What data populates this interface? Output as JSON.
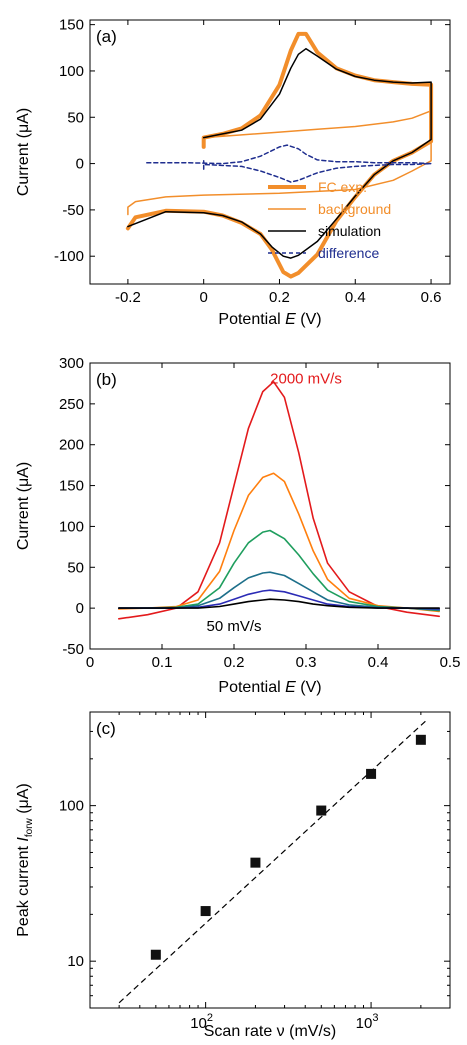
{
  "chart_data": [
    {
      "type": "line",
      "panel": "(a)",
      "xlabel_prefix": "Potential ",
      "xlabel_var": "E",
      "xlabel_unit": " (V)",
      "ylabel": "Current (μA)",
      "xlim": [
        -0.3,
        0.65
      ],
      "ylim": [
        -130,
        155
      ],
      "xticks": [
        -0.2,
        0,
        0.2,
        0.4,
        0.6
      ],
      "xtick_labels": [
        "-0.2",
        "0",
        "0.2",
        "0.4",
        "0.6"
      ],
      "yticks": [
        -100,
        -50,
        0,
        50,
        100,
        150
      ],
      "ytick_labels": [
        "-100",
        "-50",
        "0",
        "50",
        "100",
        "150"
      ],
      "legend_position": "bottom-right",
      "series": [
        {
          "name": "FC exp.",
          "color": "#f28e2b",
          "width": 4,
          "dash": "",
          "x": [
            0,
            0,
            0.05,
            0.1,
            0.15,
            0.2,
            0.23,
            0.25,
            0.27,
            0.3,
            0.35,
            0.4,
            0.45,
            0.5,
            0.55,
            0.6,
            0.6,
            0.55,
            0.5,
            0.45,
            0.4,
            0.35,
            0.3,
            0.25,
            0.23,
            0.21,
            0.18,
            0.15,
            0.1,
            0.05,
            0,
            -0.1,
            -0.18,
            -0.2
          ],
          "y": [
            18,
            28,
            32,
            38,
            52,
            85,
            122,
            140,
            140,
            120,
            103,
            95,
            90,
            88,
            86,
            85,
            24,
            12,
            3,
            -12,
            -36,
            -62,
            -98,
            -118,
            -122,
            -117,
            -93,
            -76,
            -64,
            -56,
            -52,
            -51,
            -58,
            -70
          ]
        },
        {
          "name": "background",
          "color": "#f28e2b",
          "width": 1.5,
          "dash": "",
          "x": [
            0,
            0.1,
            0.2,
            0.3,
            0.4,
            0.5,
            0.55,
            0.6,
            0.6,
            0.55,
            0.5,
            0.4,
            0.2,
            0,
            -0.1,
            -0.18,
            -0.2,
            -0.2
          ],
          "y": [
            28,
            31,
            34,
            37,
            40,
            45,
            49,
            57,
            3,
            -8,
            -18,
            -28,
            -32,
            -34,
            -36,
            -41,
            -47,
            -55
          ]
        },
        {
          "name": "simulation",
          "color": "#000000",
          "width": 1.5,
          "dash": "",
          "x": [
            0,
            0.05,
            0.1,
            0.15,
            0.2,
            0.23,
            0.25,
            0.27,
            0.3,
            0.35,
            0.4,
            0.45,
            0.5,
            0.55,
            0.6,
            0.6,
            0.55,
            0.5,
            0.45,
            0.4,
            0.35,
            0.3,
            0.25,
            0.23,
            0.21,
            0.18,
            0.15,
            0.1,
            0.05,
            0,
            -0.1,
            -0.2
          ],
          "y": [
            28,
            32,
            36,
            48,
            75,
            103,
            118,
            124,
            116,
            102,
            94,
            90,
            88,
            87,
            88,
            26,
            12,
            3,
            -12,
            -35,
            -60,
            -84,
            -99,
            -102,
            -100,
            -90,
            -76,
            -63,
            -56,
            -53,
            -52,
            -68
          ]
        },
        {
          "name": "difference",
          "color": "#1f2e8f",
          "width": 1.5,
          "dash": "4,3",
          "x": [
            -0.15,
            -0.05,
            0.05,
            0.1,
            0.15,
            0.2,
            0.22,
            0.25,
            0.27,
            0.3,
            0.35,
            0.4,
            0.45,
            0.5,
            0.55,
            0.6,
            0.55,
            0.5,
            0.45,
            0.4,
            0.35,
            0.3,
            0.25,
            0.23,
            0.2,
            0.15,
            0.1,
            0,
            0,
            0
          ],
          "y": [
            1,
            1,
            0,
            2,
            8,
            18,
            20,
            16,
            10,
            4,
            2,
            2,
            1,
            1,
            1,
            0,
            -1,
            -1,
            -2,
            -3,
            -5,
            -10,
            -18,
            -20,
            -15,
            -8,
            -3,
            -1,
            3,
            -6
          ]
        }
      ]
    },
    {
      "type": "line",
      "panel": "(b)",
      "xlabel_prefix": "Potential ",
      "xlabel_var": "E",
      "xlabel_unit": " (V)",
      "ylabel": "Current (μA)",
      "xlim": [
        0,
        0.5
      ],
      "ylim": [
        -50,
        300
      ],
      "xticks": [
        0,
        0.1,
        0.2,
        0.3,
        0.4,
        0.5
      ],
      "xtick_labels": [
        "0",
        "0.1",
        "0.2",
        "0.3",
        "0.4",
        "0.5"
      ],
      "yticks": [
        -50,
        0,
        50,
        100,
        150,
        200,
        250,
        300
      ],
      "ytick_labels": [
        "-50",
        "0",
        "50",
        "100",
        "150",
        "200",
        "250",
        "300"
      ],
      "annotations": [
        {
          "text": "2000 mV/s",
          "color": "#e31a1c",
          "x": 0.3,
          "y": 275
        },
        {
          "text": "50 mV/s",
          "color": "#000000",
          "x": 0.2,
          "y": -28
        }
      ],
      "series": [
        {
          "color": "#e31a1c",
          "x": [
            0.04,
            0.08,
            0.12,
            0.15,
            0.18,
            0.2,
            0.22,
            0.24,
            0.255,
            0.27,
            0.29,
            0.31,
            0.33,
            0.36,
            0.4,
            0.44,
            0.485
          ],
          "y": [
            -13,
            -8,
            0,
            20,
            80,
            150,
            220,
            265,
            277,
            258,
            190,
            110,
            55,
            20,
            2,
            -5,
            -10
          ]
        },
        {
          "color": "#ff7f0e",
          "x": [
            0.04,
            0.08,
            0.12,
            0.15,
            0.18,
            0.2,
            0.22,
            0.24,
            0.255,
            0.27,
            0.29,
            0.31,
            0.33,
            0.36,
            0.4,
            0.44,
            0.485
          ],
          "y": [
            -1,
            0,
            2,
            10,
            45,
            95,
            138,
            160,
            165,
            155,
            115,
            70,
            35,
            12,
            3,
            0,
            -4
          ]
        },
        {
          "color": "#1f9e5e",
          "x": [
            0.04,
            0.08,
            0.12,
            0.15,
            0.18,
            0.2,
            0.22,
            0.24,
            0.25,
            0.27,
            0.29,
            0.31,
            0.33,
            0.36,
            0.4,
            0.44,
            0.485
          ],
          "y": [
            0,
            0,
            1,
            5,
            25,
            55,
            80,
            93,
            95,
            85,
            65,
            42,
            22,
            8,
            2,
            0,
            -3
          ]
        },
        {
          "color": "#1d6f8a",
          "x": [
            0.04,
            0.08,
            0.12,
            0.15,
            0.18,
            0.2,
            0.22,
            0.24,
            0.25,
            0.27,
            0.29,
            0.31,
            0.33,
            0.36,
            0.4,
            0.44,
            0.485
          ],
          "y": [
            0,
            0,
            0,
            3,
            12,
            25,
            37,
            43,
            44,
            40,
            30,
            20,
            10,
            4,
            1,
            0,
            -2
          ]
        },
        {
          "color": "#2b2bb5",
          "x": [
            0.04,
            0.08,
            0.12,
            0.15,
            0.18,
            0.2,
            0.22,
            0.24,
            0.25,
            0.27,
            0.29,
            0.31,
            0.33,
            0.36,
            0.4,
            0.44,
            0.485
          ],
          "y": [
            0,
            0,
            0,
            1,
            5,
            11,
            17,
            21,
            22,
            20,
            15,
            10,
            5,
            2,
            0,
            0,
            -1
          ]
        },
        {
          "color": "#000000",
          "x": [
            0.04,
            0.08,
            0.12,
            0.15,
            0.18,
            0.2,
            0.22,
            0.24,
            0.25,
            0.27,
            0.29,
            0.31,
            0.33,
            0.36,
            0.4,
            0.44,
            0.485
          ],
          "y": [
            0,
            0,
            0,
            0,
            2,
            5,
            8,
            10,
            11,
            10,
            8,
            5,
            3,
            1,
            0,
            0,
            0
          ]
        }
      ]
    },
    {
      "type": "scatter",
      "panel": "(c)",
      "xscale": "log",
      "yscale": "log",
      "xlabel": "Scan rate ν (mV/s)",
      "ylabel_prefix": "Peak current ",
      "ylabel_var": "I",
      "ylabel_sub": "forw",
      "ylabel_unit": " (μA)",
      "xlim": [
        20,
        3000
      ],
      "ylim": [
        5,
        400
      ],
      "xticks": [
        100,
        1000
      ],
      "xtick_base": "10",
      "xtick_exps": [
        "2",
        "3"
      ],
      "yticks": [
        10,
        100
      ],
      "ytick_labels": [
        "10",
        "100"
      ],
      "points": {
        "x": [
          50,
          100,
          200,
          500,
          1000,
          2000
        ],
        "y": [
          11,
          21,
          43,
          93,
          160,
          265
        ]
      },
      "fit_line": {
        "x": [
          30,
          2200
        ],
        "y": [
          5.4,
          360
        ]
      }
    }
  ]
}
